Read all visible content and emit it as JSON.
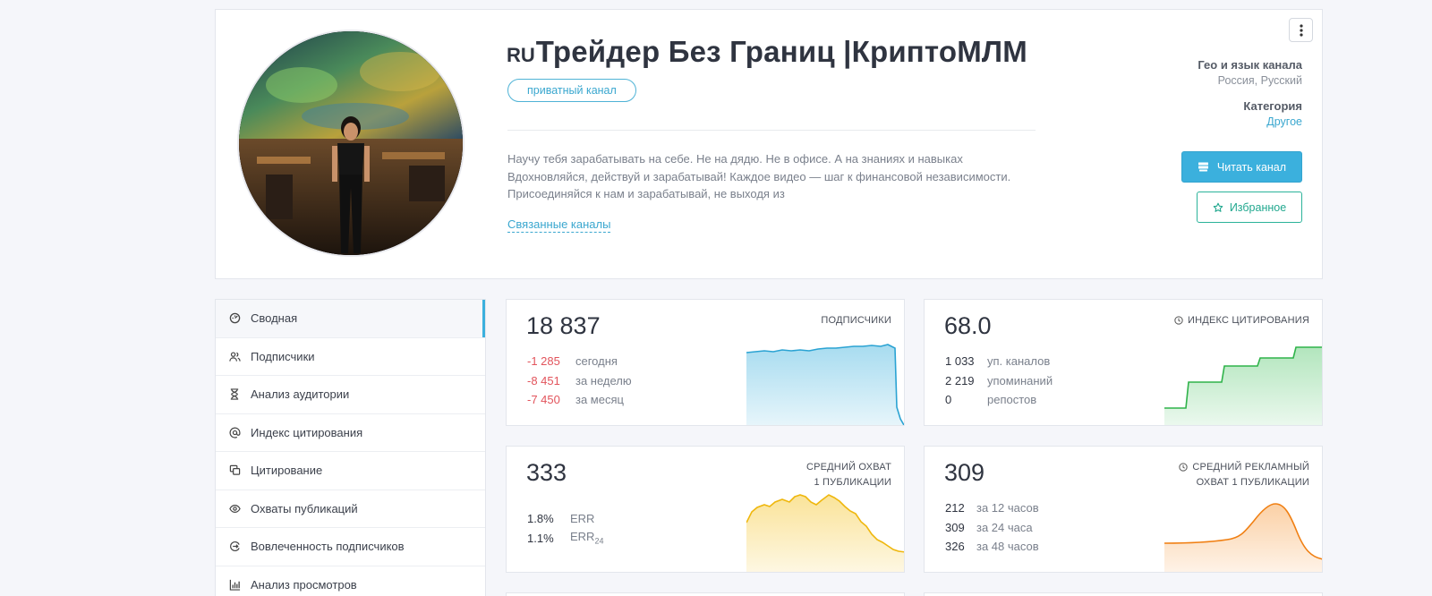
{
  "header": {
    "flag": "RU",
    "title": "Трейдер Без Границ |КриптоМЛМ",
    "badge": "приватный канал",
    "description": [
      "Научу тебя зарабатывать на себе. Не на дядю. Не в офисе. А на знаниях и навыках",
      "Вдохновляйся, действуй и зарабатывай! Каждое видео — шаг к финансовой независимости.",
      "Присоединяйся к нам и зарабатывай, не выходя из"
    ],
    "related_link": "Связанные каналы",
    "geo_label": "Гео и язык канала",
    "geo_value": "Россия, Русский",
    "category_label": "Категория",
    "category_value": "Другое",
    "read_button": "Читать канал",
    "favorite_button": "Избранное"
  },
  "sidebar": {
    "items": [
      {
        "label": "Сводная",
        "icon": "dashboard-icon"
      },
      {
        "label": "Подписчики",
        "icon": "users-icon"
      },
      {
        "label": "Анализ аудитории",
        "icon": "hourglass-icon"
      },
      {
        "label": "Индекс цитирования",
        "icon": "at-icon"
      },
      {
        "label": "Цитирование",
        "icon": "quote-icon"
      },
      {
        "label": "Охваты публикаций",
        "icon": "eye-icon"
      },
      {
        "label": "Вовлеченность подписчиков",
        "icon": "engagement-icon"
      },
      {
        "label": "Анализ просмотров",
        "icon": "bar-chart-icon"
      }
    ]
  },
  "subscribers": {
    "value": "18 837",
    "label": "ПОДПИСЧИКИ",
    "rows": [
      {
        "num": "-1 285",
        "lbl": "сегодня"
      },
      {
        "num": "-8 451",
        "lbl": "за неделю"
      },
      {
        "num": "-7 450",
        "lbl": "за месяц"
      }
    ],
    "color": "#3bb0dd"
  },
  "citation": {
    "value": "68.0",
    "label": "ИНДЕКС ЦИТИРОВАНИЯ",
    "rows": [
      {
        "num": "1 033",
        "lbl": "уп. каналов"
      },
      {
        "num": "2 219",
        "lbl": "упоминаний"
      },
      {
        "num": "0",
        "lbl": "репостов"
      }
    ],
    "color": "#3fbf5a"
  },
  "reach": {
    "value": "333",
    "label_line1": "СРЕДНИЙ ОХВАТ",
    "label_line2": "1 ПУБЛИКАЦИИ",
    "rows": [
      {
        "num": "1.8%",
        "lbl": "ERR"
      },
      {
        "num": "1.1%",
        "lbl": "ERR",
        "sub": "24"
      }
    ],
    "color": "#f4c11c"
  },
  "ad_reach": {
    "value": "309",
    "label_line1": "СРЕДНИЙ РЕКЛАМНЫЙ",
    "label_line2": "ОХВАТ 1 ПУБЛИКАЦИИ",
    "rows": [
      {
        "num": "212",
        "lbl": "за 12 часов"
      },
      {
        "num": "309",
        "lbl": "за 24 часа"
      },
      {
        "num": "326",
        "lbl": "за 48 часов"
      }
    ],
    "color": "#f58a1f"
  }
}
